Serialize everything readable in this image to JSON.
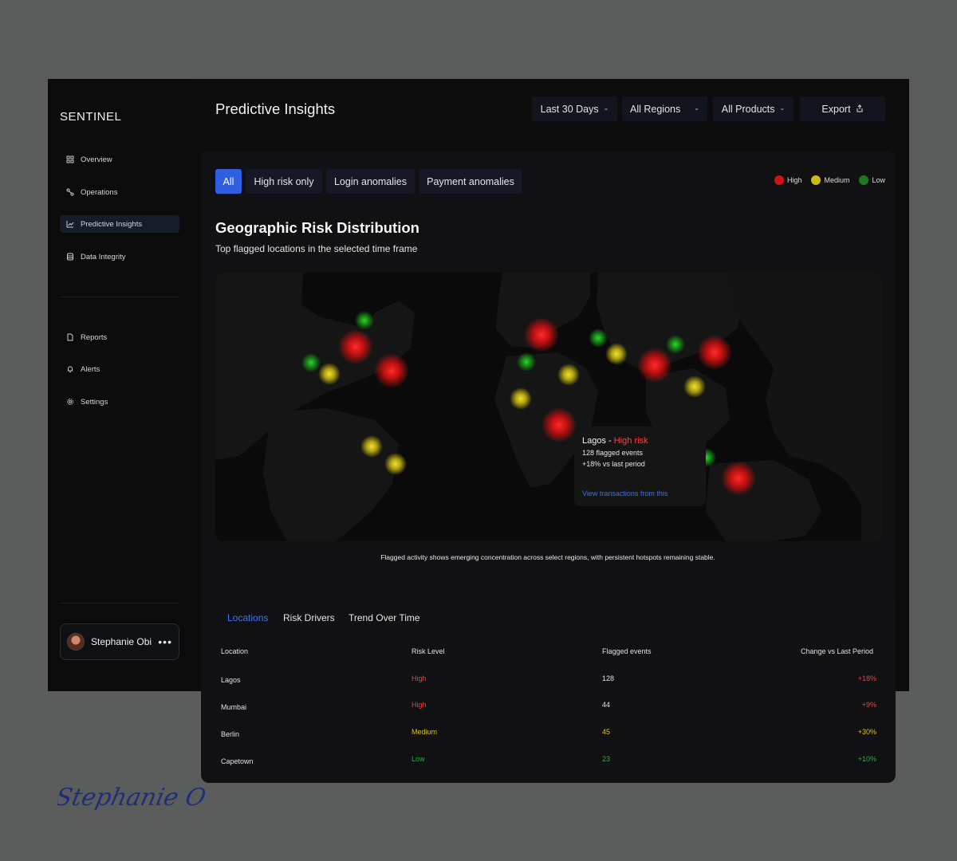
{
  "brand": "SENTINEL",
  "page_title": "Predictive Insights",
  "nav": {
    "primary": [
      {
        "label": "Overview",
        "icon": "grid-icon"
      },
      {
        "label": "Operations",
        "icon": "route-icon"
      },
      {
        "label": "Predictive Insights",
        "icon": "chart-line-icon",
        "active": true
      },
      {
        "label": "Data Integrity",
        "icon": "database-icon"
      }
    ],
    "secondary": [
      {
        "label": "Reports",
        "icon": "document-icon"
      },
      {
        "label": "Alerts",
        "icon": "bell-icon"
      },
      {
        "label": "Settings",
        "icon": "gear-icon"
      }
    ]
  },
  "user": {
    "name": "Stephanie Obi"
  },
  "filters": {
    "range": "Last 30 Days",
    "regions": "All Regions",
    "products": "All Products",
    "export": "Export"
  },
  "tabs": [
    "All",
    "High risk only",
    "Login anomalies",
    "Payment anomalies"
  ],
  "legend": [
    {
      "label": "High",
      "color": "#d11212"
    },
    {
      "label": "Medium",
      "color": "#c9bd12"
    },
    {
      "label": "Low",
      "color": "#1c7a1c"
    }
  ],
  "section": {
    "title": "Geographic Risk Distribution",
    "subtitle": "Top flagged locations in the selected time frame"
  },
  "tooltip": {
    "city": "Lagos",
    "separator": " - ",
    "risk": "High risk",
    "events": "128 flagged events",
    "change": "+18% vs last period",
    "link": "View transactions from this"
  },
  "map_caption": "Flagged activity shows emerging concentration across select regions, with persistent hotspots remaining stable.",
  "table": {
    "tabs": [
      "Locations",
      "Risk Drivers",
      "Trend Over Time"
    ],
    "headers": [
      "Location",
      "Risk Level",
      "Flagged events",
      "Change vs Last Period"
    ],
    "rows": [
      {
        "location": "Lagos",
        "risk": "High",
        "events": "128",
        "change": "+18%",
        "color": "#e04545"
      },
      {
        "location": "Mumbai",
        "risk": "High",
        "events": "44",
        "change": "+9%",
        "color": "#e04545"
      },
      {
        "location": "Berlin",
        "risk": "Medium",
        "events": "45",
        "change": "+30%",
        "color": "#d4c22a"
      },
      {
        "location": "Capetown",
        "risk": "Low",
        "events": "23",
        "change": "+10%",
        "color": "#2fa84a"
      }
    ]
  },
  "signature": "Stephanie Obi"
}
